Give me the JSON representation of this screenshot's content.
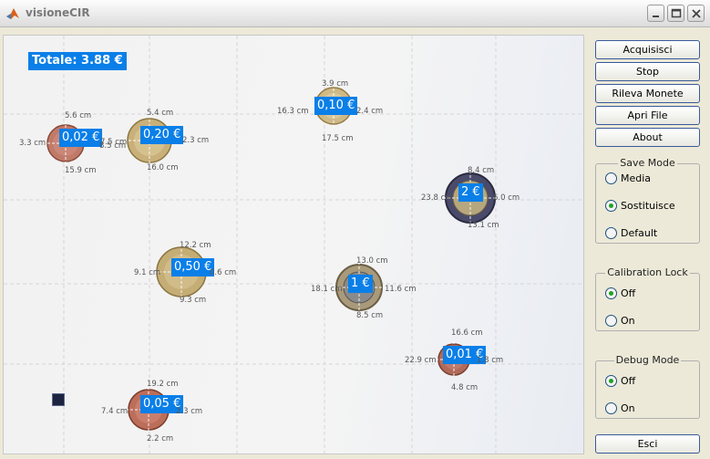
{
  "window": {
    "title": "visioneCIR"
  },
  "view": {
    "total": "Totale: 3.88 €",
    "coins": [
      {
        "label": "0,02 €",
        "dims": [
          "5.6 cm",
          "3.3 cm",
          "7.5 cm",
          "15.9 cm"
        ]
      },
      {
        "label": "0,20 €",
        "dims": [
          "5.4 cm",
          "8.5 cm",
          "2.3 cm",
          "16.0 cm"
        ]
      },
      {
        "label": "0,10 €",
        "dims": [
          "3.9 cm",
          "16.3 cm",
          "2.4 cm",
          "17.5 cm"
        ]
      },
      {
        "label": "2 €",
        "dims": [
          "8.4 cm",
          "23.8 cm",
          "6.0 cm",
          "13.1 cm"
        ]
      },
      {
        "label": "0,50 €",
        "dims": [
          "12.2 cm",
          "9.1 cm",
          "0.6 cm",
          "9.3 cm"
        ]
      },
      {
        "label": "1 €",
        "dims": [
          "13.0 cm",
          "18.1 cm",
          "11.6 cm",
          "8.5 cm"
        ]
      },
      {
        "label": "0,01 €",
        "dims": [
          "16.6 cm",
          "22.9 cm",
          "1.8 cm",
          "4.8 cm"
        ]
      },
      {
        "label": "0,05 €",
        "dims": [
          "19.2 cm",
          "7.4 cm",
          "2.3 cm",
          "2.2 cm"
        ]
      }
    ]
  },
  "buttons": {
    "acquire": "Acquisisci",
    "stop": "Stop",
    "detect": "Rileva Monete",
    "open_file": "Apri File",
    "about": "About",
    "exit": "Esci"
  },
  "save_mode": {
    "title": "Save Mode",
    "options": [
      "Media",
      "Sostituisce",
      "Default"
    ],
    "selected": 1
  },
  "calibration_lock": {
    "title": "Calibration Lock",
    "options": [
      "Off",
      "On"
    ],
    "selected": 0
  },
  "debug_mode": {
    "title": "Debug Mode",
    "options": [
      "Off",
      "On"
    ],
    "selected": 0
  },
  "colors": {
    "label_bg": "#0a7fe8",
    "radio_selected": "#21a121"
  }
}
